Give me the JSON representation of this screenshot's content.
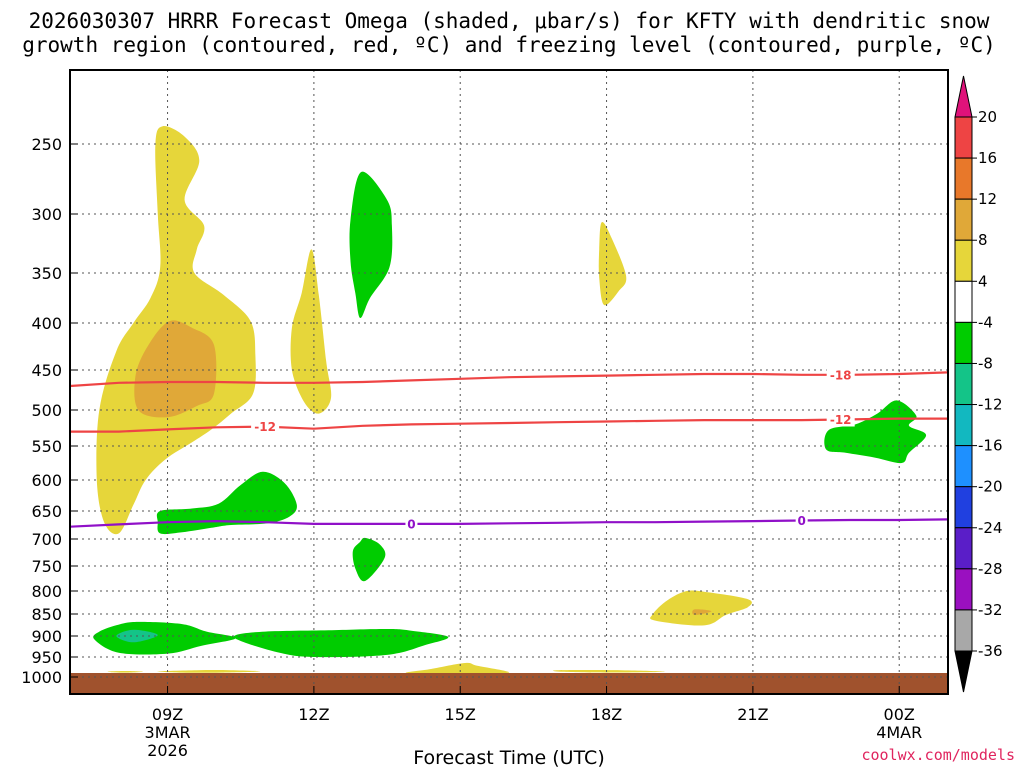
{
  "title_line1": "2026030307 HRRR Forecast Omega (shaded, μbar/s) for KFTY with dendritic snow",
  "title_line2": "growth region (contoured, red, ºC) and freezing level (contoured, purple, ºC)",
  "credit": "coolwx.com/models",
  "colors": {
    "credit": "#e0245e",
    "ground": "#a0522d",
    "dgz_line": "#ee4444",
    "freezing_line": "#9010c8"
  },
  "chart_data": {
    "type": "heatmap",
    "xlabel": "Forecast Time (UTC)",
    "ylabel": "",
    "ylim": [
      1000,
      200
    ],
    "y_ticks": [
      250,
      300,
      350,
      400,
      450,
      500,
      550,
      600,
      650,
      700,
      750,
      800,
      850,
      900,
      950,
      1000
    ],
    "x_ticks": [
      {
        "hour": 9,
        "label": "09Z",
        "sub1": "3MAR",
        "sub2": "2026"
      },
      {
        "hour": 12,
        "label": "12Z",
        "sub1": "",
        "sub2": ""
      },
      {
        "hour": 15,
        "label": "15Z",
        "sub1": "",
        "sub2": ""
      },
      {
        "hour": 18,
        "label": "18Z",
        "sub1": "",
        "sub2": ""
      },
      {
        "hour": 21,
        "label": "21Z",
        "sub1": "",
        "sub2": ""
      },
      {
        "hour": 24,
        "label": "00Z",
        "sub1": "4MAR",
        "sub2": ""
      }
    ],
    "xlim": [
      7,
      25
    ],
    "colorbar": {
      "labels": [
        "20",
        "16",
        "12",
        "8",
        "4",
        "-4",
        "-8",
        "-12",
        "-16",
        "-20",
        "-24",
        "-28",
        "-32",
        "-36"
      ],
      "colors": [
        "#ee4444",
        "#e8782a",
        "#e0a838",
        "#e6d63a",
        "#ffffff",
        "#00cc00",
        "#14c488",
        "#12b8c0",
        "#1e90ff",
        "#2040e0",
        "#5a1ec8",
        "#9a10c0",
        "#a8a8a8"
      ],
      "top_color": "#e0127a",
      "bottom_color": "#000000"
    },
    "contours": [
      {
        "name": "-18",
        "color": "#ee4444",
        "points": [
          [
            7,
            470
          ],
          [
            8,
            466
          ],
          [
            9,
            465
          ],
          [
            10,
            465
          ],
          [
            11,
            466
          ],
          [
            12,
            466
          ],
          [
            13,
            465
          ],
          [
            14,
            463
          ],
          [
            15,
            461
          ],
          [
            16,
            459
          ],
          [
            17,
            458
          ],
          [
            18,
            457
          ],
          [
            19,
            456
          ],
          [
            20,
            455
          ],
          [
            21,
            455
          ],
          [
            22,
            456
          ],
          [
            23,
            456
          ],
          [
            24,
            455
          ],
          [
            25,
            453
          ]
        ],
        "label_at": [
          22.8
        ]
      },
      {
        "name": "-12",
        "color": "#ee4444",
        "points": [
          [
            7,
            530
          ],
          [
            8,
            530
          ],
          [
            9,
            527
          ],
          [
            10,
            524
          ],
          [
            11,
            523
          ],
          [
            12,
            526
          ],
          [
            13,
            522
          ],
          [
            14,
            520
          ],
          [
            15,
            519
          ],
          [
            16,
            518
          ],
          [
            17,
            517
          ],
          [
            18,
            516
          ],
          [
            19,
            515
          ],
          [
            20,
            514
          ],
          [
            21,
            514
          ],
          [
            22,
            514
          ],
          [
            23,
            513
          ],
          [
            24,
            512
          ],
          [
            25,
            512
          ]
        ],
        "label_at": [
          11,
          22.8
        ]
      },
      {
        "name": "0",
        "color": "#9010c8",
        "points": [
          [
            7,
            678
          ],
          [
            8,
            674
          ],
          [
            9,
            670
          ],
          [
            10,
            668
          ],
          [
            11,
            670
          ],
          [
            12,
            673
          ],
          [
            13,
            673
          ],
          [
            14,
            673
          ],
          [
            15,
            673
          ],
          [
            16,
            672
          ],
          [
            17,
            671
          ],
          [
            18,
            670
          ],
          [
            19,
            670
          ],
          [
            20,
            669
          ],
          [
            21,
            668
          ],
          [
            22,
            667
          ],
          [
            23,
            666
          ],
          [
            24,
            666
          ],
          [
            25,
            665
          ]
        ],
        "label_at": [
          14,
          22
        ]
      }
    ],
    "regions": [
      {
        "value": 4,
        "color": "#e6d63a",
        "points": [
          [
            8.9,
            238
          ],
          [
            9.35,
            245
          ],
          [
            9.65,
            262
          ],
          [
            9.35,
            290
          ],
          [
            9.75,
            310
          ],
          [
            9.6,
            330
          ],
          [
            9.55,
            350
          ],
          [
            10.15,
            372
          ],
          [
            10.7,
            398
          ],
          [
            10.8,
            435
          ],
          [
            10.75,
            480
          ],
          [
            10.3,
            505
          ],
          [
            9.9,
            527
          ],
          [
            9.5,
            545
          ],
          [
            8.95,
            570
          ],
          [
            8.55,
            600
          ],
          [
            8.3,
            640
          ],
          [
            8.0,
            690
          ],
          [
            7.7,
            670
          ],
          [
            7.55,
            600
          ],
          [
            7.6,
            500
          ],
          [
            7.95,
            430
          ],
          [
            8.3,
            400
          ],
          [
            8.65,
            375
          ],
          [
            8.85,
            345
          ],
          [
            8.8,
            300
          ],
          [
            8.75,
            250
          ]
        ]
      },
      {
        "value": 8,
        "color": "#e0a838",
        "points": [
          [
            9.05,
            398
          ],
          [
            9.5,
            405
          ],
          [
            9.95,
            423
          ],
          [
            9.95,
            480
          ],
          [
            9.6,
            495
          ],
          [
            9.0,
            510
          ],
          [
            8.4,
            500
          ],
          [
            8.35,
            455
          ],
          [
            8.65,
            420
          ]
        ]
      },
      {
        "value": 4,
        "color": "#e6d63a",
        "points": [
          [
            8.05,
            530
          ],
          [
            8.15,
            565
          ],
          [
            8.05,
            610
          ],
          [
            7.95,
            568
          ]
        ]
      },
      {
        "value": 4,
        "color": "#e6d63a",
        "points": [
          [
            11.95,
            330
          ],
          [
            12.1,
            372
          ],
          [
            12.25,
            440
          ],
          [
            12.35,
            485
          ],
          [
            12.1,
            505
          ],
          [
            11.8,
            490
          ],
          [
            11.55,
            450
          ],
          [
            11.55,
            405
          ],
          [
            11.75,
            370
          ]
        ]
      },
      {
        "value": -4,
        "color": "#00cc00",
        "points": [
          [
            12.97,
            270
          ],
          [
            13.5,
            290
          ],
          [
            13.6,
            310
          ],
          [
            13.55,
            345
          ],
          [
            13.15,
            375
          ],
          [
            12.95,
            395
          ],
          [
            12.85,
            370
          ],
          [
            12.75,
            340
          ],
          [
            12.75,
            305
          ]
        ]
      },
      {
        "value": 4,
        "color": "#e6d63a",
        "points": [
          [
            17.9,
            307
          ],
          [
            18.1,
            320
          ],
          [
            18.4,
            353
          ],
          [
            18.25,
            368
          ],
          [
            17.95,
            382
          ],
          [
            17.85,
            355
          ],
          [
            17.85,
            330
          ]
        ]
      },
      {
        "value": -4,
        "color": "#00cc00",
        "points": [
          [
            10.95,
            588
          ],
          [
            11.4,
            605
          ],
          [
            11.65,
            640
          ],
          [
            11.5,
            660
          ],
          [
            11.05,
            672
          ],
          [
            10.3,
            675
          ],
          [
            9.9,
            680
          ],
          [
            9.3,
            688
          ],
          [
            8.85,
            690
          ],
          [
            8.8,
            670
          ],
          [
            8.85,
            650
          ],
          [
            9.5,
            646
          ],
          [
            10.05,
            638
          ],
          [
            10.5,
            608
          ]
        ]
      },
      {
        "value": -4,
        "color": "#00cc00",
        "points": [
          [
            13.05,
            698
          ],
          [
            13.35,
            710
          ],
          [
            13.45,
            735
          ],
          [
            13.05,
            780
          ],
          [
            12.85,
            755
          ],
          [
            12.8,
            722
          ],
          [
            12.95,
            705
          ]
        ]
      },
      {
        "value": -4,
        "color": "#00cc00",
        "points": [
          [
            23.95,
            488
          ],
          [
            24.35,
            508
          ],
          [
            24.2,
            522
          ],
          [
            24.55,
            535
          ],
          [
            24.2,
            560
          ],
          [
            24.05,
            575
          ],
          [
            23.5,
            567
          ],
          [
            22.9,
            560
          ],
          [
            22.5,
            555
          ],
          [
            22.55,
            528
          ],
          [
            23.1,
            520
          ],
          [
            23.55,
            505
          ]
        ]
      },
      {
        "value": 4,
        "color": "#e6d63a",
        "points": [
          [
            19.65,
            800
          ],
          [
            20.1,
            803
          ],
          [
            20.9,
            818
          ],
          [
            20.9,
            835
          ],
          [
            20.45,
            852
          ],
          [
            20.0,
            876
          ],
          [
            19.0,
            865
          ],
          [
            18.95,
            850
          ],
          [
            19.25,
            820
          ]
        ]
      },
      {
        "value": 8,
        "color": "#e0a838",
        "points": [
          [
            19.8,
            840
          ],
          [
            20.15,
            844
          ],
          [
            19.8,
            852
          ]
        ]
      },
      {
        "value": -4,
        "color": "#00cc00",
        "points": [
          [
            8.4,
            868
          ],
          [
            9.3,
            873
          ],
          [
            9.8,
            890
          ],
          [
            10.4,
            905
          ],
          [
            9.7,
            923
          ],
          [
            9.0,
            942
          ],
          [
            8.0,
            940
          ],
          [
            7.5,
            908
          ],
          [
            7.6,
            890
          ],
          [
            8.0,
            874
          ]
        ]
      },
      {
        "value": -8,
        "color": "#14c488",
        "points": [
          [
            8.3,
            886
          ],
          [
            8.8,
            898
          ],
          [
            8.3,
            915
          ],
          [
            7.95,
            900
          ]
        ]
      },
      {
        "value": -4,
        "color": "#00cc00",
        "points": [
          [
            10.4,
            898
          ],
          [
            11.0,
            890
          ],
          [
            12.3,
            887
          ],
          [
            13.5,
            884
          ],
          [
            14.0,
            888
          ],
          [
            14.75,
            902
          ],
          [
            14.3,
            921
          ],
          [
            13.5,
            945
          ],
          [
            12.0,
            950
          ],
          [
            11.3,
            940
          ],
          [
            10.5,
            912
          ]
        ]
      },
      {
        "value": 4,
        "color": "#e6d63a",
        "points": [
          [
            7.8,
            986
          ],
          [
            8.2,
            985
          ],
          [
            8.5,
            987
          ],
          [
            8.2,
            989
          ],
          [
            7.85,
            988
          ]
        ]
      },
      {
        "value": 4,
        "color": "#e6d63a",
        "points": [
          [
            8.8,
            986
          ],
          [
            9.6,
            983
          ],
          [
            10.3,
            983
          ],
          [
            10.9,
            986
          ],
          [
            10.1,
            989
          ],
          [
            9.3,
            989
          ]
        ]
      },
      {
        "value": 4,
        "color": "#e6d63a",
        "points": [
          [
            15.1,
            965
          ],
          [
            15.35,
            972
          ],
          [
            16.0,
            989
          ],
          [
            15.0,
            990
          ],
          [
            13.9,
            990
          ],
          [
            14.4,
            980
          ]
        ]
      },
      {
        "value": 4,
        "color": "#e6d63a",
        "points": [
          [
            17.0,
            983
          ],
          [
            18.3,
            983
          ],
          [
            19.2,
            987
          ],
          [
            18.0,
            989
          ],
          [
            17.1,
            987
          ]
        ]
      }
    ]
  }
}
